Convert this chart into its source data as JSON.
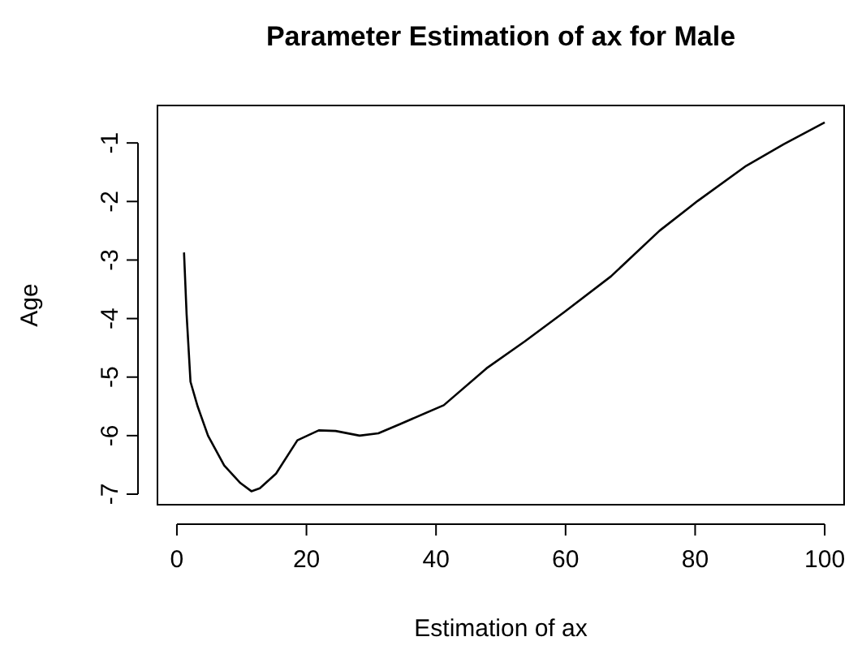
{
  "chart_data": {
    "type": "line",
    "title": "Parameter Estimation of ax for Male",
    "xlabel": "Estimation of ax",
    "ylabel": "Age",
    "x": [
      1.1,
      1.5,
      2.1,
      3.2,
      4.8,
      7.3,
      9.8,
      11.5,
      12.8,
      15.3,
      18.6,
      21.9,
      24.5,
      28.2,
      31.1,
      34.5,
      41.2,
      47.8,
      53.7,
      59.9,
      67.0,
      74.5,
      80.4,
      87.9,
      93.7,
      100
    ],
    "series": [
      {
        "color": "#000000",
        "values": [
          -2.87,
          -3.93,
          -5.08,
          -5.5,
          -6.0,
          -6.51,
          -6.81,
          -6.95,
          -6.9,
          -6.65,
          -6.08,
          -5.91,
          -5.92,
          -6.0,
          -5.96,
          -5.8,
          -5.48,
          -4.85,
          -4.39,
          -3.88,
          -3.28,
          -2.5,
          -1.99,
          -1.39,
          -1.02,
          -0.65
        ]
      }
    ],
    "xlim": [
      -3,
      103
    ],
    "ylim": [
      -7.18,
      -0.36
    ],
    "xticks": [
      0,
      20,
      40,
      60,
      80,
      100
    ],
    "yticks": [
      -7,
      -6,
      -5,
      -4,
      -3,
      -2,
      -1
    ],
    "grid": false,
    "marker": "none",
    "line_style": "solid"
  }
}
